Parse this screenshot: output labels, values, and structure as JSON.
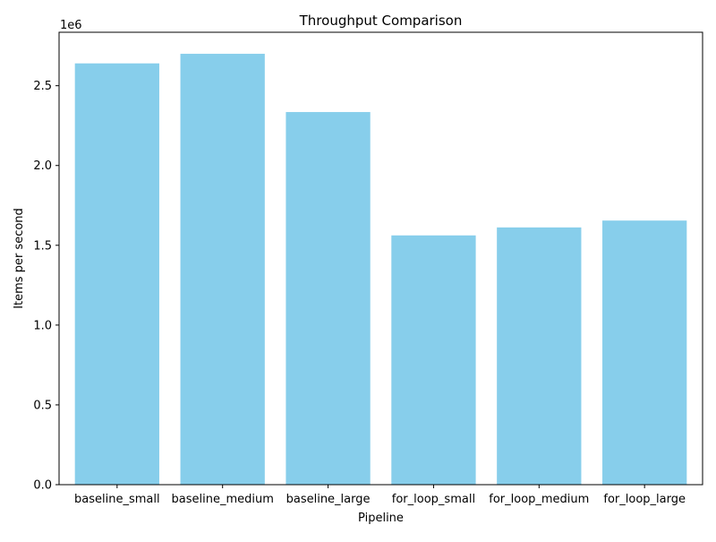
{
  "chart_data": {
    "type": "bar",
    "title": "Throughput Comparison",
    "xlabel": "Pipeline",
    "ylabel": "Items per second",
    "y_scale_label": "1e6",
    "categories": [
      "baseline_small",
      "baseline_medium",
      "baseline_large",
      "for_loop_small",
      "for_loop_medium",
      "for_loop_large"
    ],
    "values": [
      2640000,
      2700000,
      2335000,
      1562000,
      1612000,
      1655000
    ],
    "ylim": [
      0,
      2835000
    ],
    "yticks": [
      0,
      500000,
      1000000,
      1500000,
      2000000,
      2500000
    ],
    "ytick_labels": [
      "0.0",
      "0.5",
      "1.0",
      "1.5",
      "2.0",
      "2.5"
    ],
    "bar_color": "#87ceeb",
    "grid": false,
    "legend": "none"
  }
}
